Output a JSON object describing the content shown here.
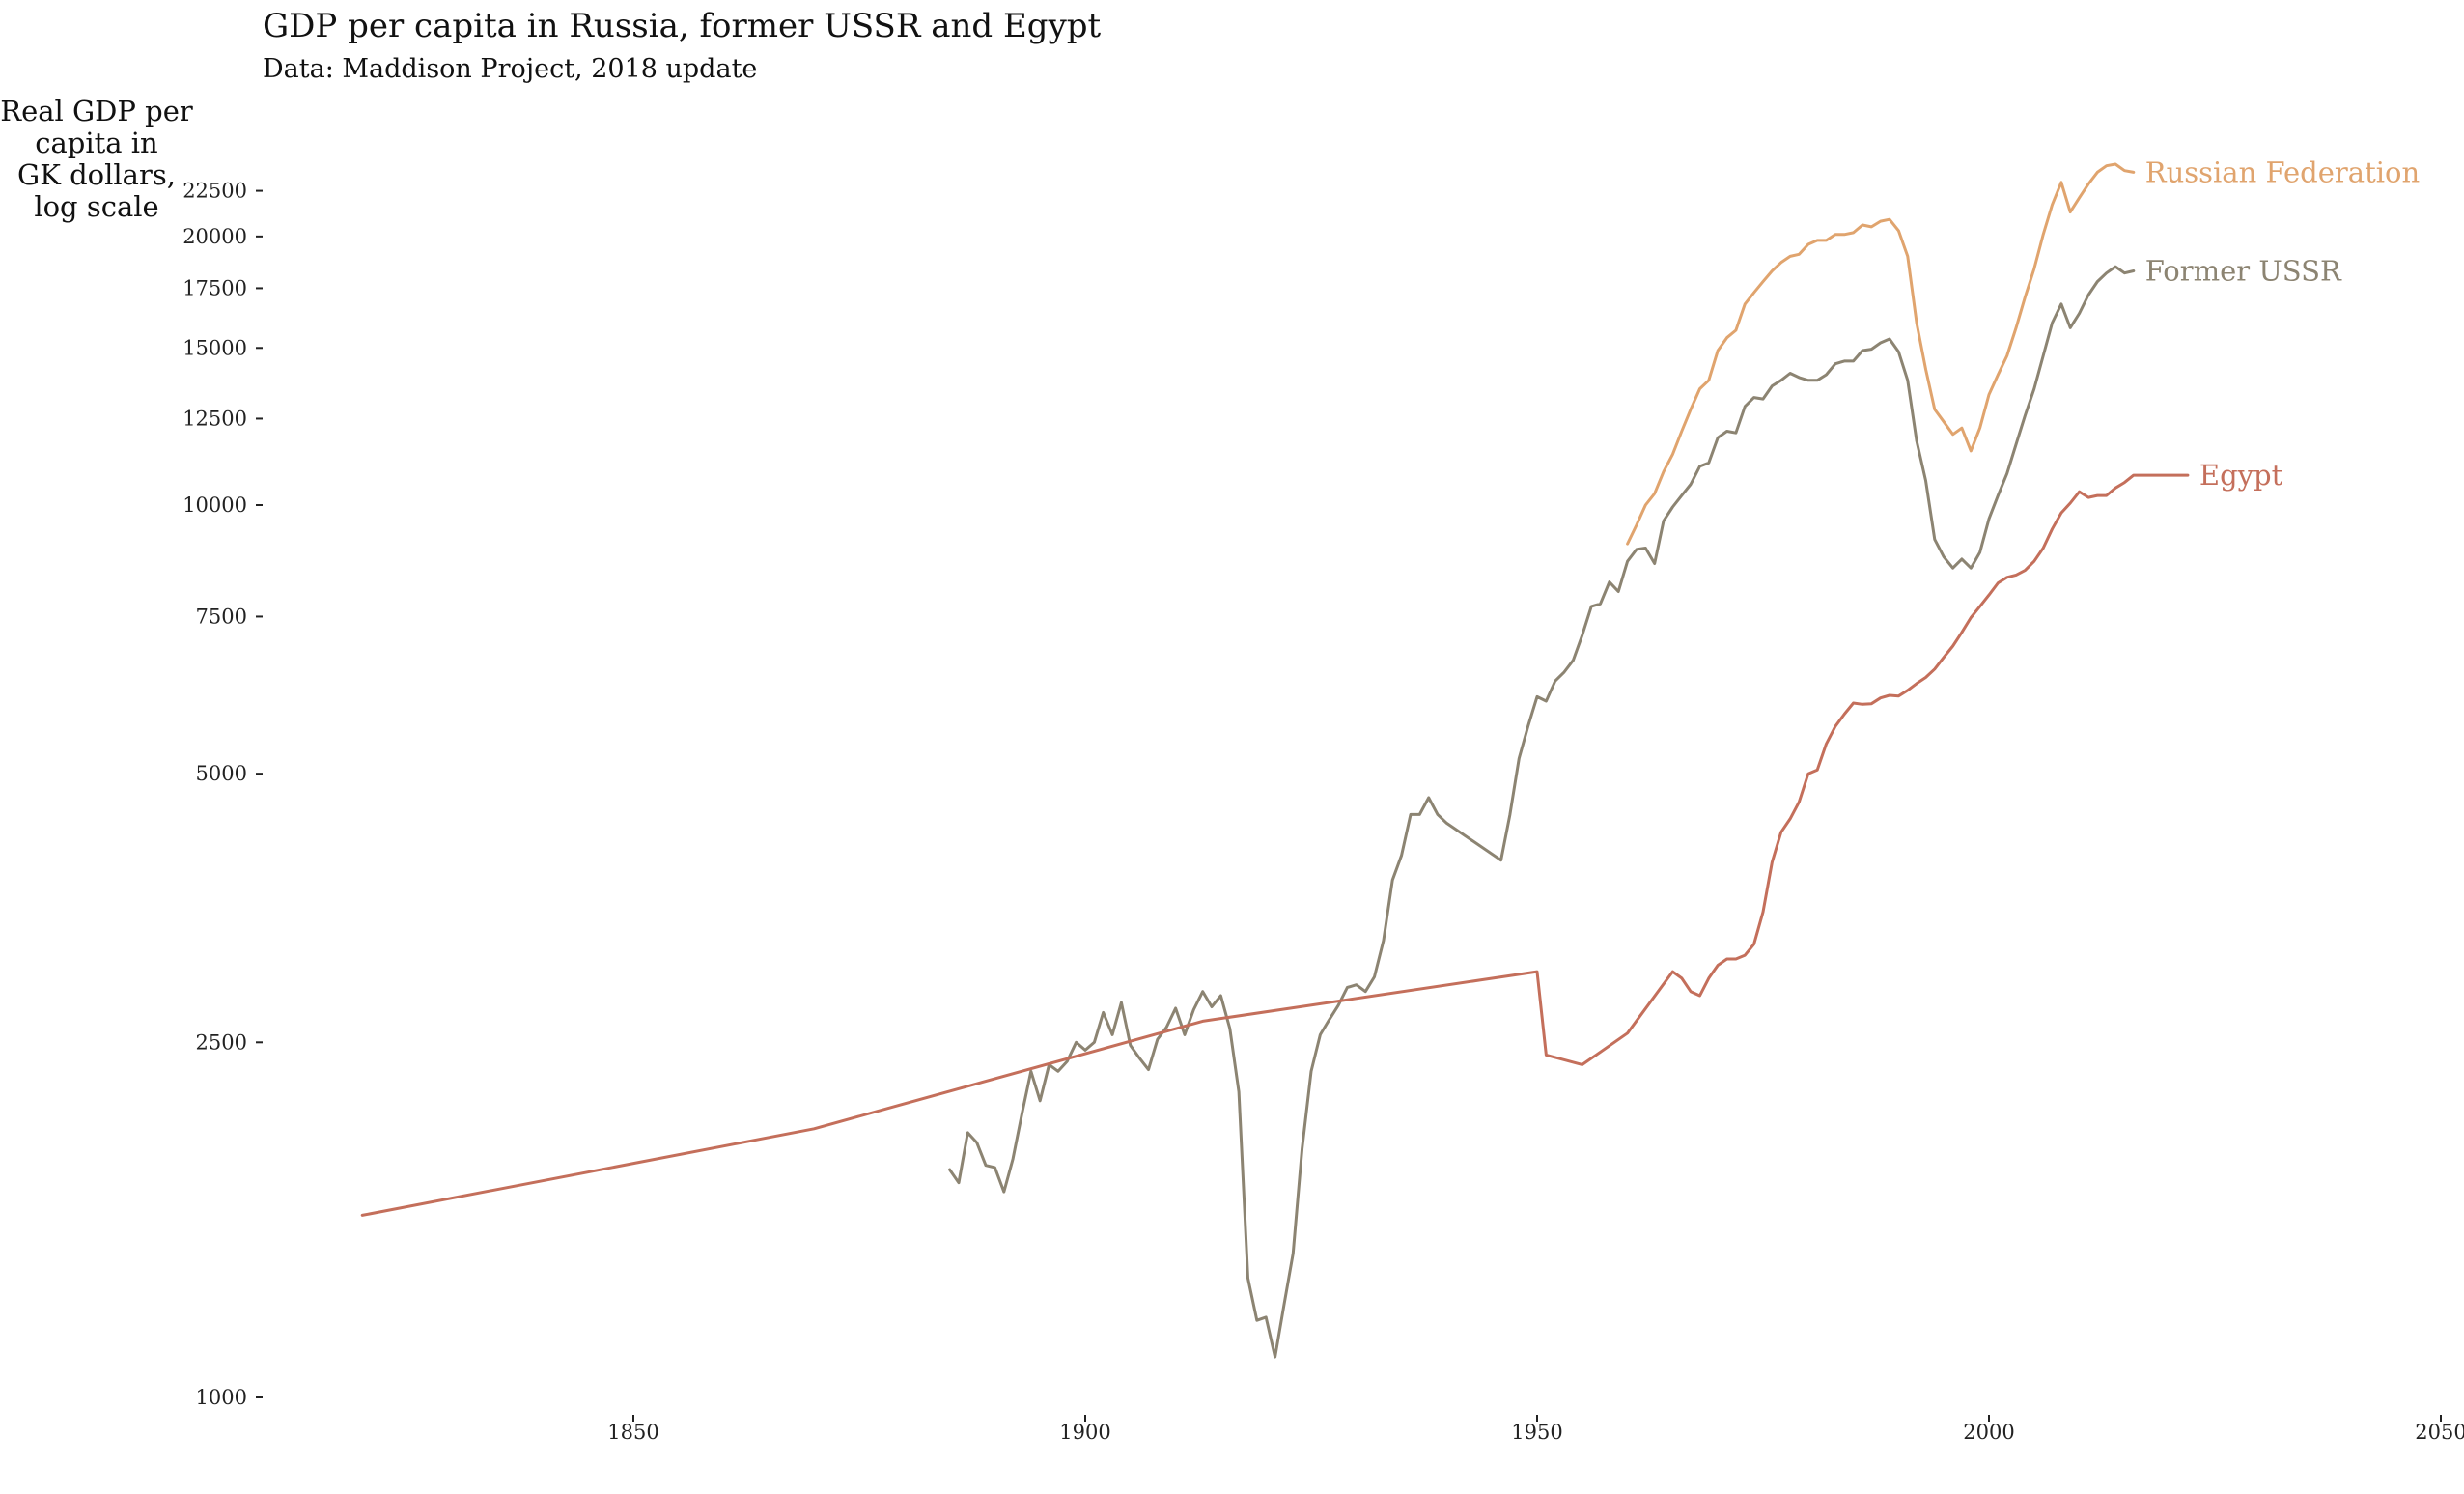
{
  "chart_data": {
    "type": "line",
    "title": "GDP per capita in Russia, former USSR and Egypt",
    "subtitle": "Data: Maddison Project, 2018 update",
    "ylabel": [
      "Real GDP per",
      "capita in",
      "GK dollars,",
      "log scale"
    ],
    "xlabel": "",
    "y_scale": "log",
    "xlim": [
      1812,
      2050
    ],
    "ylim": [
      1000,
      26000
    ],
    "x_ticks": [
      1850,
      1900,
      1950,
      2000,
      2050
    ],
    "y_ticks": [
      1000,
      2500,
      5000,
      7500,
      10000,
      12500,
      15000,
      17500,
      20000,
      22500
    ],
    "grid": false,
    "legend": "direct labels at line ends",
    "series": [
      {
        "name": "Russian Federation",
        "color": "#E0A46E",
        "points": [
          [
            1960,
            9050
          ],
          [
            1961,
            9500
          ],
          [
            1962,
            10000
          ],
          [
            1963,
            10300
          ],
          [
            1964,
            10900
          ],
          [
            1965,
            11400
          ],
          [
            1966,
            12100
          ],
          [
            1967,
            12800
          ],
          [
            1968,
            13500
          ],
          [
            1969,
            13800
          ],
          [
            1970,
            14900
          ],
          [
            1971,
            15400
          ],
          [
            1972,
            15700
          ],
          [
            1973,
            16800
          ],
          [
            1974,
            17300
          ],
          [
            1975,
            17800
          ],
          [
            1976,
            18300
          ],
          [
            1977,
            18700
          ],
          [
            1978,
            19000
          ],
          [
            1979,
            19100
          ],
          [
            1980,
            19600
          ],
          [
            1981,
            19800
          ],
          [
            1982,
            19800
          ],
          [
            1983,
            20100
          ],
          [
            1984,
            20100
          ],
          [
            1985,
            20200
          ],
          [
            1986,
            20600
          ],
          [
            1987,
            20500
          ],
          [
            1988,
            20800
          ],
          [
            1989,
            20900
          ],
          [
            1990,
            20300
          ],
          [
            1991,
            19000
          ],
          [
            1992,
            16000
          ],
          [
            1993,
            14200
          ],
          [
            1994,
            12800
          ],
          [
            1995,
            12400
          ],
          [
            1996,
            12000
          ],
          [
            1997,
            12200
          ],
          [
            1998,
            11500
          ],
          [
            1999,
            12200
          ],
          [
            2000,
            13300
          ],
          [
            2001,
            14000
          ],
          [
            2002,
            14700
          ],
          [
            2003,
            15800
          ],
          [
            2004,
            17100
          ],
          [
            2005,
            18400
          ],
          [
            2006,
            20100
          ],
          [
            2007,
            21700
          ],
          [
            2008,
            23000
          ],
          [
            2009,
            21300
          ],
          [
            2010,
            22100
          ],
          [
            2011,
            22900
          ],
          [
            2012,
            23600
          ],
          [
            2013,
            24000
          ],
          [
            2014,
            24100
          ],
          [
            2015,
            23700
          ],
          [
            2016,
            23600
          ]
        ]
      },
      {
        "name": "Former USSR",
        "color": "#8C8472",
        "points": [
          [
            1885,
            1800
          ],
          [
            1886,
            1740
          ],
          [
            1887,
            1980
          ],
          [
            1888,
            1930
          ],
          [
            1889,
            1820
          ],
          [
            1890,
            1810
          ],
          [
            1891,
            1700
          ],
          [
            1892,
            1850
          ],
          [
            1893,
            2080
          ],
          [
            1894,
            2320
          ],
          [
            1895,
            2150
          ],
          [
            1896,
            2360
          ],
          [
            1897,
            2320
          ],
          [
            1898,
            2380
          ],
          [
            1899,
            2500
          ],
          [
            1900,
            2450
          ],
          [
            1901,
            2500
          ],
          [
            1902,
            2700
          ],
          [
            1903,
            2550
          ],
          [
            1904,
            2770
          ],
          [
            1905,
            2480
          ],
          [
            1906,
            2400
          ],
          [
            1907,
            2330
          ],
          [
            1908,
            2520
          ],
          [
            1909,
            2600
          ],
          [
            1910,
            2730
          ],
          [
            1911,
            2550
          ],
          [
            1912,
            2720
          ],
          [
            1913,
            2850
          ],
          [
            1914,
            2740
          ],
          [
            1915,
            2820
          ],
          [
            1916,
            2590
          ],
          [
            1917,
            2200
          ],
          [
            1918,
            1360
          ],
          [
            1919,
            1220
          ],
          [
            1920,
            1230
          ],
          [
            1921,
            1110
          ],
          [
            1922,
            1270
          ],
          [
            1923,
            1450
          ],
          [
            1924,
            1900
          ],
          [
            1925,
            2320
          ],
          [
            1926,
            2550
          ],
          [
            1927,
            2650
          ],
          [
            1928,
            2750
          ],
          [
            1929,
            2880
          ],
          [
            1930,
            2900
          ],
          [
            1931,
            2850
          ],
          [
            1932,
            2960
          ],
          [
            1933,
            3250
          ],
          [
            1934,
            3800
          ],
          [
            1935,
            4050
          ],
          [
            1936,
            4500
          ],
          [
            1937,
            4500
          ],
          [
            1938,
            4700
          ],
          [
            1939,
            4500
          ],
          [
            1940,
            4400
          ],
          [
            1946,
            4000
          ],
          [
            1947,
            4500
          ],
          [
            1948,
            5200
          ],
          [
            1949,
            5650
          ],
          [
            1950,
            6100
          ],
          [
            1951,
            6030
          ],
          [
            1952,
            6350
          ],
          [
            1953,
            6500
          ],
          [
            1954,
            6700
          ],
          [
            1955,
            7150
          ],
          [
            1956,
            7700
          ],
          [
            1957,
            7750
          ],
          [
            1958,
            8200
          ],
          [
            1959,
            8000
          ],
          [
            1960,
            8650
          ],
          [
            1961,
            8920
          ],
          [
            1962,
            8950
          ],
          [
            1963,
            8600
          ],
          [
            1964,
            9600
          ],
          [
            1965,
            9950
          ],
          [
            1966,
            10250
          ],
          [
            1967,
            10550
          ],
          [
            1968,
            11050
          ],
          [
            1969,
            11150
          ],
          [
            1970,
            11900
          ],
          [
            1971,
            12100
          ],
          [
            1972,
            12050
          ],
          [
            1973,
            12900
          ],
          [
            1974,
            13200
          ],
          [
            1975,
            13150
          ],
          [
            1976,
            13600
          ],
          [
            1977,
            13800
          ],
          [
            1978,
            14050
          ],
          [
            1979,
            13900
          ],
          [
            1980,
            13800
          ],
          [
            1981,
            13800
          ],
          [
            1982,
            14000
          ],
          [
            1983,
            14400
          ],
          [
            1984,
            14500
          ],
          [
            1985,
            14500
          ],
          [
            1986,
            14900
          ],
          [
            1987,
            14950
          ],
          [
            1988,
            15200
          ],
          [
            1989,
            15350
          ],
          [
            1990,
            14850
          ],
          [
            1991,
            13800
          ],
          [
            1992,
            11800
          ],
          [
            1993,
            10650
          ],
          [
            1994,
            9150
          ],
          [
            1995,
            8750
          ],
          [
            1996,
            8500
          ],
          [
            1997,
            8700
          ],
          [
            1998,
            8500
          ],
          [
            1999,
            8850
          ],
          [
            2000,
            9650
          ],
          [
            2001,
            10250
          ],
          [
            2002,
            10850
          ],
          [
            2003,
            11700
          ],
          [
            2004,
            12600
          ],
          [
            2005,
            13500
          ],
          [
            2006,
            14700
          ],
          [
            2007,
            16000
          ],
          [
            2008,
            16800
          ],
          [
            2009,
            15800
          ],
          [
            2010,
            16400
          ],
          [
            2011,
            17200
          ],
          [
            2012,
            17800
          ],
          [
            2013,
            18200
          ],
          [
            2014,
            18500
          ],
          [
            2015,
            18200
          ],
          [
            2016,
            18300
          ]
        ]
      },
      {
        "name": "Egypt",
        "color": "#C46F5B",
        "points": [
          [
            1820,
            1600
          ],
          [
            1870,
            2000
          ],
          [
            1913,
            2640
          ],
          [
            1950,
            3000
          ],
          [
            1951,
            2420
          ],
          [
            1955,
            2360
          ],
          [
            1960,
            2560
          ],
          [
            1965,
            3000
          ],
          [
            1966,
            2950
          ],
          [
            1967,
            2850
          ],
          [
            1968,
            2820
          ],
          [
            1969,
            2950
          ],
          [
            1970,
            3050
          ],
          [
            1971,
            3100
          ],
          [
            1972,
            3100
          ],
          [
            1973,
            3130
          ],
          [
            1974,
            3220
          ],
          [
            1975,
            3500
          ],
          [
            1976,
            3980
          ],
          [
            1977,
            4300
          ],
          [
            1978,
            4450
          ],
          [
            1979,
            4650
          ],
          [
            1980,
            5000
          ],
          [
            1981,
            5050
          ],
          [
            1982,
            5400
          ],
          [
            1983,
            5650
          ],
          [
            1984,
            5830
          ],
          [
            1985,
            6000
          ],
          [
            1986,
            5980
          ],
          [
            1987,
            5990
          ],
          [
            1988,
            6080
          ],
          [
            1989,
            6120
          ],
          [
            1990,
            6110
          ],
          [
            1991,
            6200
          ],
          [
            1992,
            6310
          ],
          [
            1993,
            6410
          ],
          [
            1994,
            6550
          ],
          [
            1995,
            6750
          ],
          [
            1996,
            6950
          ],
          [
            1997,
            7200
          ],
          [
            1998,
            7480
          ],
          [
            1999,
            7700
          ],
          [
            2000,
            7930
          ],
          [
            2001,
            8180
          ],
          [
            2002,
            8300
          ],
          [
            2003,
            8350
          ],
          [
            2004,
            8450
          ],
          [
            2005,
            8650
          ],
          [
            2006,
            8950
          ],
          [
            2007,
            9400
          ],
          [
            2008,
            9800
          ],
          [
            2009,
            10050
          ],
          [
            2010,
            10350
          ],
          [
            2011,
            10200
          ],
          [
            2012,
            10250
          ],
          [
            2013,
            10250
          ],
          [
            2014,
            10450
          ],
          [
            2015,
            10600
          ],
          [
            2016,
            10800
          ],
          [
            2022,
            10800
          ]
        ]
      }
    ]
  }
}
